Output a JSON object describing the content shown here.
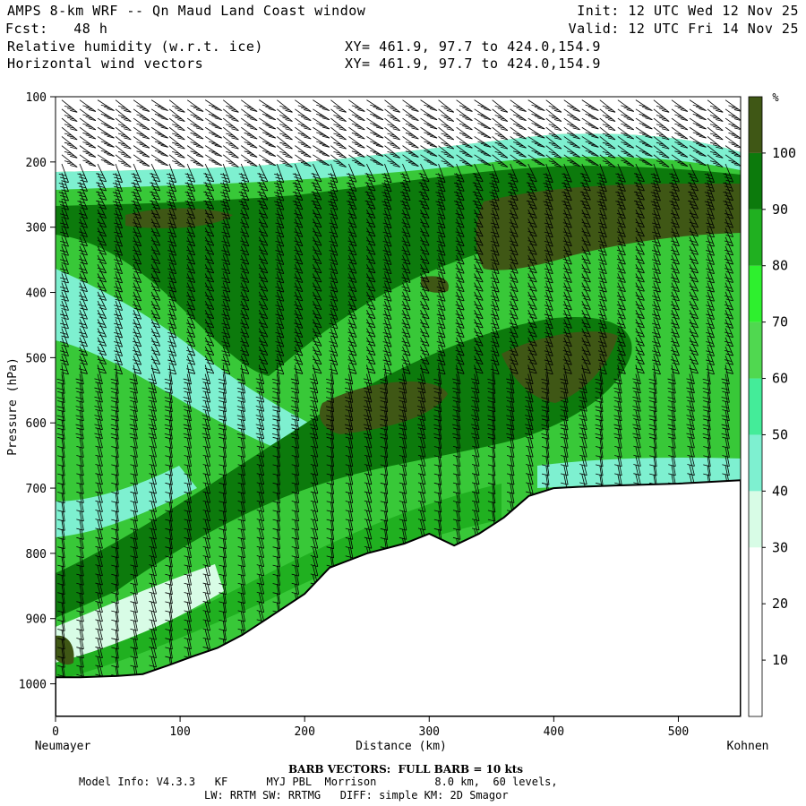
{
  "header": {
    "title": "AMPS 8-km WRF -- Qn Maud Land Coast window",
    "forecast": "Fcst:   48 h",
    "field1": "Relative humidity (w.r.t. ice)",
    "field2": "Horizontal wind vectors",
    "xy1": "XY= 461.9, 97.7 to 424.0,154.9",
    "xy2": "XY= 461.9, 97.7 to 424.0,154.9",
    "init": "Init: 12 UTC Wed 12 Nov 25",
    "valid": "Valid: 12 UTC Fri 14 Nov 25"
  },
  "footer": {
    "barb_note": "BARB VECTORS:  FULL BARB = 10 kts",
    "model_line1": "Model Info: V4.3.3   KF      MYJ PBL  Morrison         8.0 km,  60 levels,",
    "model_line2": "LW: RRTM SW: RRTMG   DIFF: simple KM: 2D Smagor"
  },
  "chart_data": {
    "type": "heatmap",
    "title": "Relative humidity (w.r.t. ice)",
    "xlabel": "Distance (km)",
    "ylabel": "Pressure (hPa)",
    "x_start_label": "Neumayer",
    "x_end_label": "Kohnen",
    "xlim": [
      0,
      550
    ],
    "ylim": [
      1050,
      100
    ],
    "x_ticks": [
      0,
      100,
      200,
      300,
      400,
      500
    ],
    "y_ticks": [
      100,
      200,
      300,
      400,
      500,
      600,
      700,
      800,
      900,
      1000
    ],
    "colorbar": {
      "unit": "%",
      "levels": [
        10,
        20,
        30,
        40,
        50,
        60,
        70,
        80,
        90,
        100
      ],
      "colors": [
        "#ffffff",
        "#ffffff",
        "#ffffff",
        "#d8fce6",
        "#7ef0d0",
        "#44ec99",
        "#50d850",
        "#2ef02e",
        "#20b020",
        "#0c7a0c",
        "#3f5715"
      ]
    },
    "terrain_surface_hPa": {
      "x": [
        0,
        20,
        50,
        70,
        90,
        110,
        130,
        150,
        170,
        200,
        220,
        250,
        280,
        300,
        320,
        340,
        360,
        380,
        400,
        420,
        450,
        500,
        550
      ],
      "p": [
        990,
        990,
        988,
        985,
        972,
        958,
        945,
        925,
        900,
        862,
        822,
        800,
        785,
        770,
        788,
        770,
        745,
        712,
        700,
        698,
        696,
        693,
        688
      ]
    },
    "rh_features": [
      {
        "name": "upper moist band",
        "max_rh": 100
      },
      {
        "name": "mid-level moist band",
        "max_rh": 100
      },
      {
        "name": "dry slot near surface",
        "min_rh": 30
      }
    ]
  }
}
